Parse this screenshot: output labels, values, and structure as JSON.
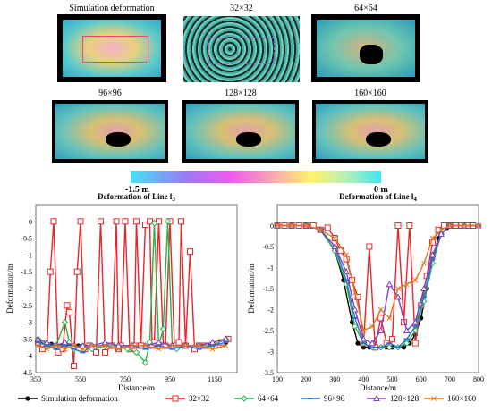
{
  "panels": [
    {
      "title": "Simulation deformation"
    },
    {
      "title": "32×32"
    },
    {
      "title": "64×64"
    },
    {
      "title": "96×96"
    },
    {
      "title": "128×128"
    },
    {
      "title": "160×160"
    }
  ],
  "colorbar": {
    "min_label": "-1.5 m",
    "max_label": "0 m"
  },
  "legend": [
    {
      "name": "Simulation deformation",
      "color": "#000000",
      "marker": "circle"
    },
    {
      "name": "32×32",
      "color": "#e8262a",
      "marker": "square-open"
    },
    {
      "name": "64×64",
      "color": "#2ab24a",
      "marker": "diamond-open"
    },
    {
      "name": "96×96",
      "color": "#2f6fd6",
      "marker": "dash"
    },
    {
      "name": "128×128",
      "color": "#7d3fc2",
      "marker": "triangle-open"
    },
    {
      "name": "160×160",
      "color": "#e07a25",
      "marker": "x"
    }
  ],
  "chart_data": [
    {
      "type": "line",
      "title": "Deformation of Line l3",
      "xlabel": "Distance/m",
      "ylabel": "Deformation/m",
      "xlim": [
        350,
        1250
      ],
      "ylim": [
        -4.5,
        0.5
      ],
      "xticks": [
        "350",
        "550",
        "750",
        "950",
        "1150"
      ],
      "yticks": [
        "0",
        "-0.5",
        "-1",
        "-1.5",
        "-2",
        "-2.5",
        "-3",
        "-3.5",
        "-4",
        "-4.5"
      ],
      "series": [
        {
          "name": "Simulation deformation",
          "x": [
            360,
            420,
            480,
            540,
            600,
            660,
            720,
            780,
            840,
            900,
            960,
            1020,
            1080,
            1140,
            1200
          ],
          "y": [
            -3.6,
            -3.65,
            -3.68,
            -3.7,
            -3.7,
            -3.7,
            -3.7,
            -3.7,
            -3.7,
            -3.7,
            -3.7,
            -3.7,
            -3.7,
            -3.65,
            -3.6
          ]
        },
        {
          "name": "32×32",
          "x": [
            360,
            380,
            400,
            415,
            430,
            450,
            470,
            490,
            500,
            520,
            535,
            550,
            570,
            590,
            620,
            640,
            660,
            690,
            710,
            720,
            730,
            750,
            770,
            790,
            800,
            820,
            840,
            860,
            870,
            880,
            900,
            920,
            930,
            950,
            970,
            990,
            1000,
            1020,
            1040,
            1060,
            1080,
            1110,
            1150,
            1180,
            1210
          ],
          "y": [
            -3.6,
            -3.8,
            -3.7,
            -1.5,
            0,
            -3.9,
            -3.8,
            -2.5,
            -2.7,
            -4.3,
            -1.5,
            0,
            -3.8,
            -3.7,
            -3.9,
            0,
            -3.9,
            -3.7,
            0,
            -3.8,
            -3.7,
            0,
            -3.8,
            -3.7,
            0,
            -3.7,
            -0.1,
            0,
            -3.7,
            -3.6,
            0,
            -3.7,
            -3.7,
            0,
            -3.7,
            -3.6,
            0,
            -3.7,
            -0.9,
            -3.8,
            -3.7,
            -3.7,
            -3.7,
            -3.6,
            -3.5
          ]
        },
        {
          "name": "64×64",
          "x": [
            360,
            400,
            440,
            480,
            500,
            520,
            560,
            600,
            660,
            720,
            760,
            800,
            840,
            860,
            880,
            900,
            920,
            940,
            960,
            980,
            1020,
            1080,
            1140,
            1200
          ],
          "y": [
            -3.5,
            -3.7,
            -3.7,
            -3.0,
            -3.6,
            -3.8,
            -3.7,
            -3.8,
            -3.7,
            -3.7,
            -3.8,
            -3.9,
            -4.2,
            -3.6,
            -0.05,
            -3.7,
            -3.2,
            0,
            -3.7,
            -3.8,
            -3.7,
            -3.7,
            -3.7,
            -3.5
          ]
        },
        {
          "name": "96×96",
          "x": [
            360,
            400,
            440,
            480,
            520,
            560,
            600,
            660,
            720,
            780,
            840,
            900,
            960,
            1020,
            1080,
            1140,
            1200
          ],
          "y": [
            -3.6,
            -3.7,
            -3.8,
            -3.7,
            -3.8,
            -3.9,
            -3.7,
            -3.7,
            -3.8,
            -3.7,
            -3.8,
            -3.7,
            -3.8,
            -3.7,
            -3.8,
            -3.7,
            -3.6
          ]
        },
        {
          "name": "128×128",
          "x": [
            360,
            400,
            440,
            480,
            520,
            560,
            600,
            660,
            720,
            780,
            840,
            900,
            960,
            1020,
            1080,
            1140,
            1200
          ],
          "y": [
            -3.5,
            -3.6,
            -3.7,
            -3.6,
            -3.7,
            -3.7,
            -3.7,
            -3.6,
            -3.7,
            -3.7,
            -3.7,
            -3.6,
            -3.7,
            -3.7,
            -3.7,
            -3.6,
            -3.5
          ]
        },
        {
          "name": "160×160",
          "x": [
            360,
            400,
            440,
            480,
            520,
            560,
            600,
            660,
            720,
            780,
            840,
            900,
            960,
            1020,
            1080,
            1140,
            1200
          ],
          "y": [
            -3.7,
            -3.8,
            -3.7,
            -3.8,
            -3.7,
            -3.8,
            -3.7,
            -3.7,
            -3.8,
            -3.7,
            -3.7,
            -3.8,
            -3.7,
            -3.7,
            -3.7,
            -3.8,
            -3.7
          ]
        }
      ]
    },
    {
      "type": "line",
      "title": "Deformation of Line l4",
      "xlabel": "Distance/m",
      "ylabel": "Deformation/m",
      "xlim": [
        100,
        800
      ],
      "ylim": [
        -3.5,
        0.5
      ],
      "xticks": [
        "100",
        "200",
        "300",
        "400",
        "500",
        "600",
        "700",
        "800"
      ],
      "yticks": [
        "0",
        "-0.5",
        "-1",
        "-1.5",
        "-2",
        "-2.5",
        "-3",
        "-3.5"
      ],
      "series": [
        {
          "name": "Simulation deformation",
          "x": [
            100,
            150,
            200,
            250,
            300,
            330,
            360,
            380,
            400,
            420,
            440,
            460,
            480,
            500,
            520,
            540,
            560,
            580,
            600,
            620,
            640,
            660,
            690,
            720,
            760,
            800
          ],
          "y": [
            0,
            0,
            0,
            -0.1,
            -0.6,
            -1.3,
            -2.3,
            -2.8,
            -2.9,
            -2.9,
            -2.9,
            -2.9,
            -2.9,
            -2.9,
            -2.9,
            -2.9,
            -2.8,
            -2.6,
            -2.2,
            -1.5,
            -0.8,
            -0.3,
            -0.05,
            0,
            0,
            0
          ]
        },
        {
          "name": "32×32",
          "x": [
            100,
            125,
            150,
            175,
            200,
            225,
            250,
            275,
            300,
            320,
            340,
            360,
            380,
            400,
            420,
            440,
            460,
            480,
            500,
            520,
            540,
            560,
            580,
            600,
            620,
            640,
            660,
            680,
            700,
            720,
            740,
            760,
            780
          ],
          "y": [
            0,
            0,
            0,
            0,
            0,
            0,
            -0.1,
            -0.05,
            -0.3,
            -0.6,
            -0.8,
            -1.3,
            -1.7,
            -2.8,
            -0.5,
            -2.9,
            -2.2,
            -2.8,
            -2.7,
            0,
            -2.3,
            0,
            -2.8,
            -1.9,
            -1.2,
            -0.4,
            -0.1,
            0,
            0,
            0,
            0,
            0,
            0
          ]
        },
        {
          "name": "64×64",
          "x": [
            100,
            150,
            200,
            250,
            300,
            340,
            370,
            400,
            430,
            460,
            490,
            520,
            550,
            580,
            610,
            640,
            670,
            700,
            750,
            800
          ],
          "y": [
            0,
            0,
            0,
            -0.1,
            -0.6,
            -1.4,
            -2.4,
            -2.8,
            -2.9,
            -2.9,
            -2.9,
            -2.9,
            -2.8,
            -2.5,
            -1.8,
            -0.9,
            -0.2,
            0,
            0,
            0
          ]
        },
        {
          "name": "96×96",
          "x": [
            100,
            150,
            200,
            250,
            300,
            340,
            370,
            400,
            430,
            460,
            490,
            520,
            550,
            580,
            610,
            640,
            670,
            700,
            750,
            800
          ],
          "y": [
            0,
            0,
            0,
            -0.1,
            -0.5,
            -1.3,
            -2.2,
            -2.8,
            -2.9,
            -2.9,
            -2.8,
            -2.9,
            -2.7,
            -2.4,
            -1.7,
            -0.8,
            -0.2,
            0,
            0,
            0
          ]
        },
        {
          "name": "128×128",
          "x": [
            100,
            150,
            200,
            250,
            300,
            340,
            370,
            400,
            430,
            460,
            490,
            520,
            550,
            580,
            610,
            640,
            670,
            700,
            750,
            800
          ],
          "y": [
            0,
            0,
            0,
            -0.1,
            -0.5,
            -1.1,
            -2.0,
            -2.7,
            -2.8,
            -2.5,
            -1.4,
            -1.7,
            -2.5,
            -2.3,
            -1.5,
            -0.7,
            -0.2,
            0,
            0,
            0
          ]
        },
        {
          "name": "160×160",
          "x": [
            100,
            150,
            200,
            250,
            300,
            340,
            370,
            400,
            430,
            460,
            490,
            520,
            550,
            580,
            610,
            640,
            670,
            700,
            750,
            800
          ],
          "y": [
            0,
            0,
            0,
            -0.1,
            -0.3,
            -0.7,
            -1.6,
            -2.5,
            -2.4,
            -2.0,
            -2.2,
            -1.5,
            -1.4,
            -1.3,
            -0.9,
            -0.3,
            -0.1,
            0,
            0,
            0
          ]
        }
      ]
    }
  ]
}
